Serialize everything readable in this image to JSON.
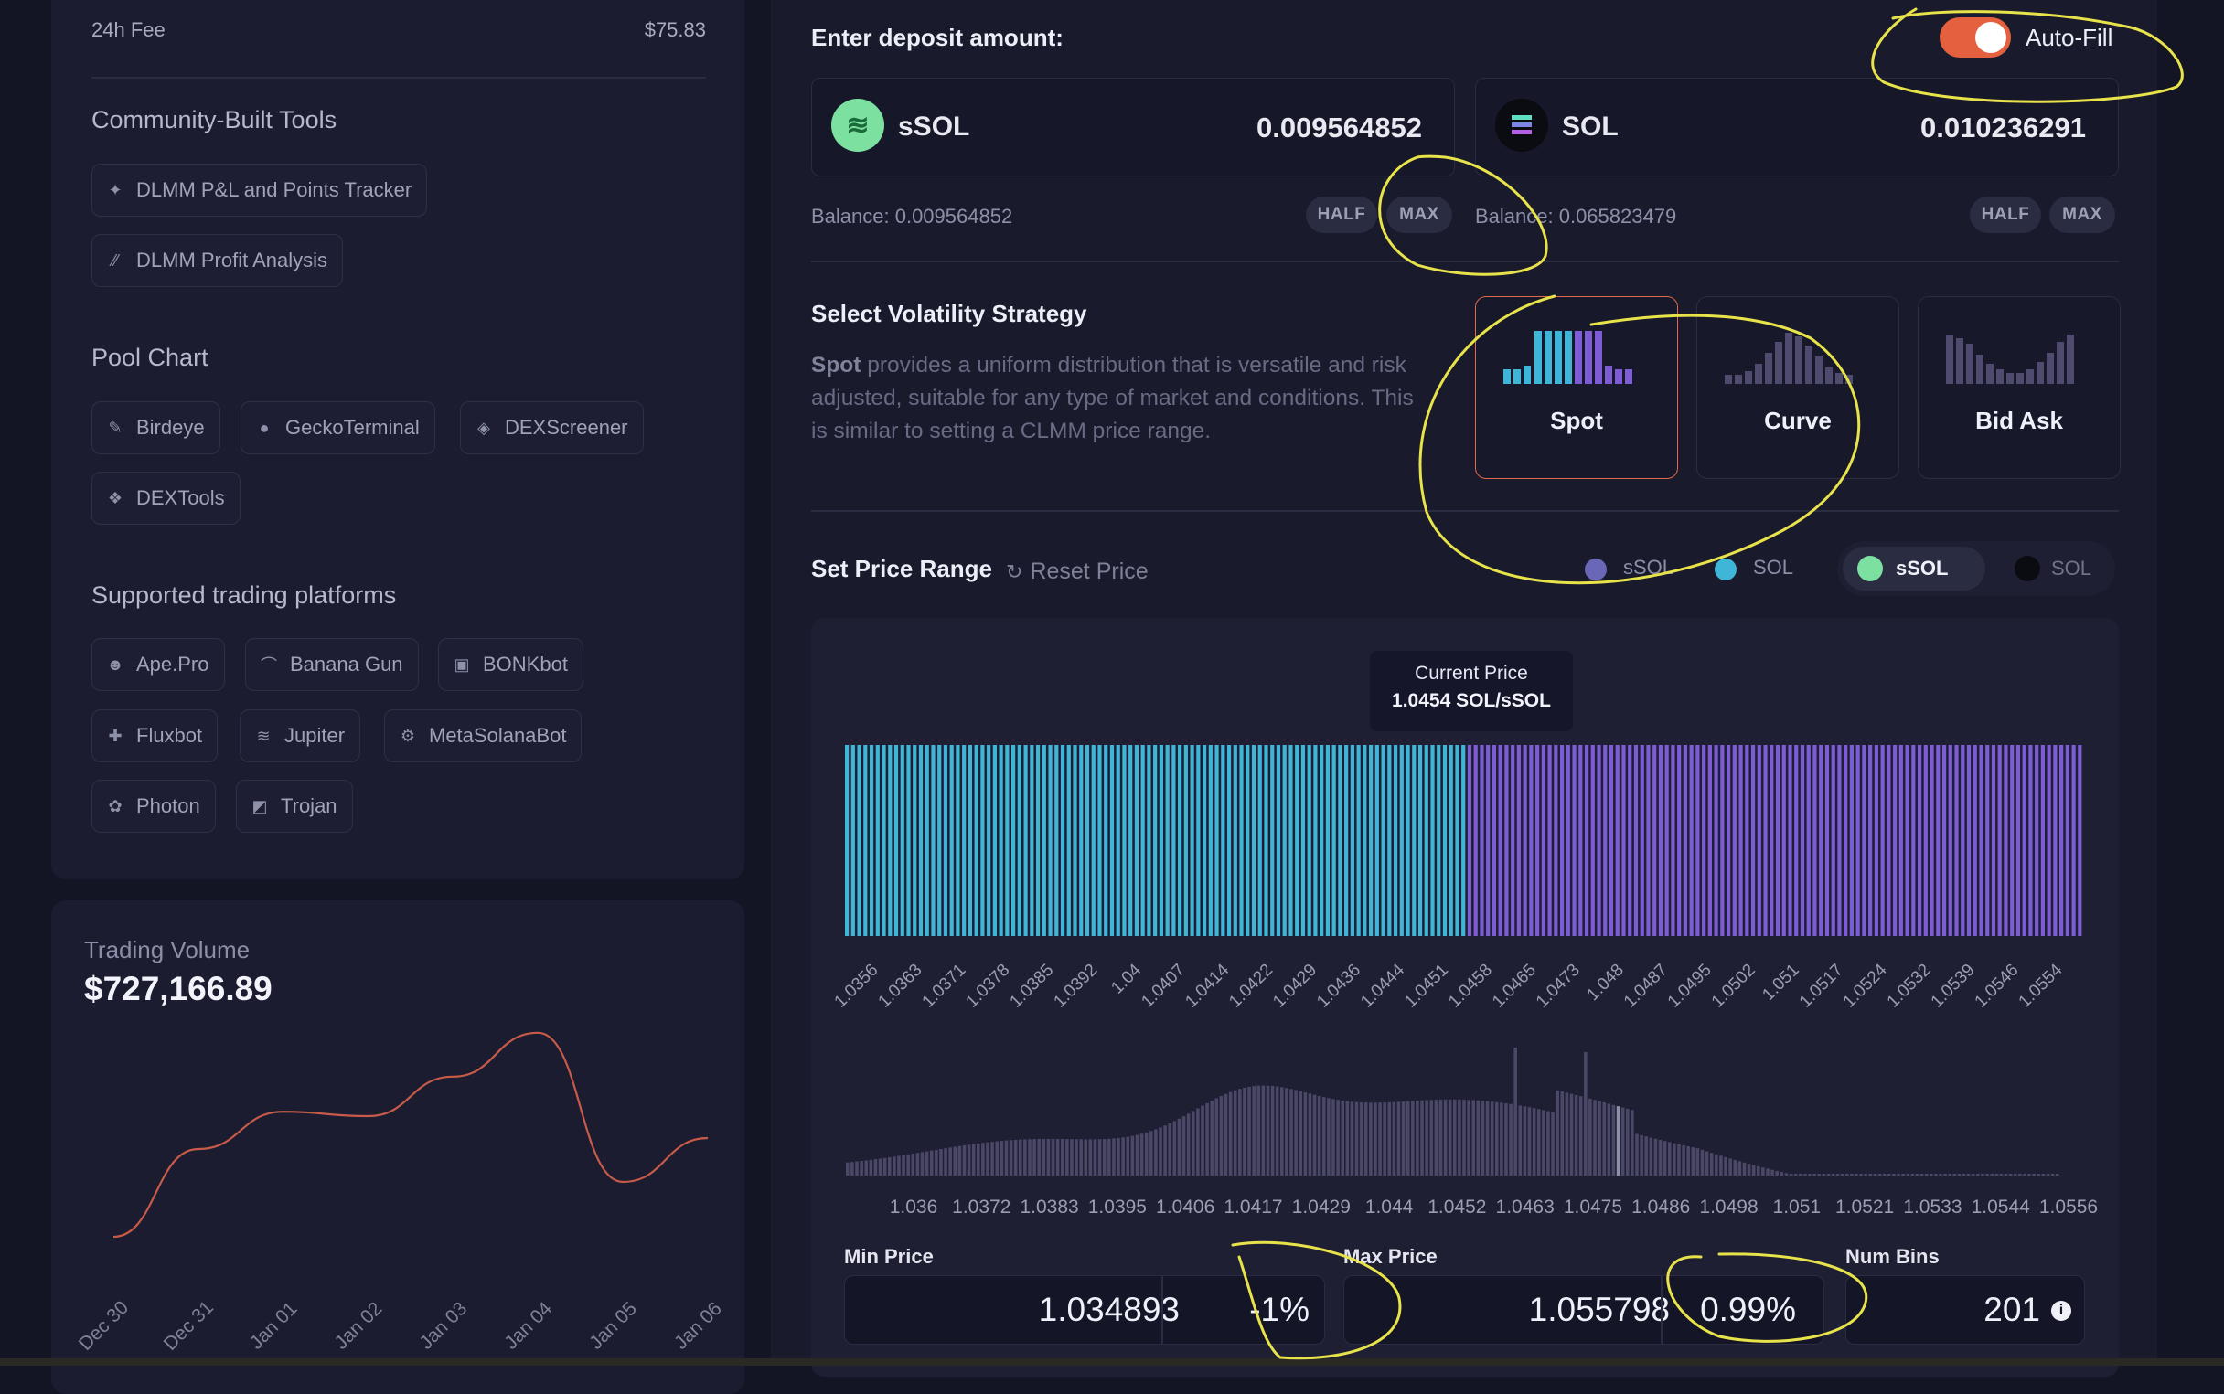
{
  "left": {
    "fee_label": "24h Fee",
    "fee_value": "$75.83",
    "community_title": "Community-Built Tools",
    "community_tools": [
      "DLMM P&L and Points Tracker",
      "DLMM Profit Analysis"
    ],
    "pool_chart_title": "Pool Chart",
    "pool_chart_tools": [
      "Birdeye",
      "GeckoTerminal",
      "DEXScreener",
      "DEXTools"
    ],
    "platforms_title": "Supported trading platforms",
    "platforms": [
      "Ape.Pro",
      "Banana Gun",
      "BONKbot",
      "Fluxbot",
      "Jupiter",
      "MetaSolanaBot",
      "Photon",
      "Trojan"
    ]
  },
  "volume": {
    "label": "Trading Volume",
    "value": "$727,166.89"
  },
  "chart_data": {
    "type": "line",
    "title": "Trading Volume",
    "x": [
      "Dec 30",
      "Dec 31",
      "Jan 01",
      "Jan 02",
      "Jan 03",
      "Jan 04",
      "Jan 05",
      "Jan 06"
    ],
    "color": "#c85a4a",
    "relative_values": [
      0.05,
      0.45,
      0.62,
      0.6,
      0.78,
      0.98,
      0.3,
      0.5
    ]
  },
  "deposit": {
    "title": "Enter deposit amount:",
    "autofill_label": "Auto-Fill",
    "token_a": {
      "symbol": "sSOL",
      "amount": "0.009564852",
      "balance": "Balance: 0.009564852"
    },
    "token_b": {
      "symbol": "SOL",
      "amount": "0.010236291",
      "balance": "Balance: 0.065823479"
    },
    "half_label": "HALF",
    "max_label": "MAX"
  },
  "strategy": {
    "title": "Select Volatility Strategy",
    "desc_bold": "Spot",
    "desc_rest": " provides a uniform distribution that is versatile and risk adjusted, suitable for any type of market and conditions. This is similar to setting a CLMM price range.",
    "options": [
      "Spot",
      "Curve",
      "Bid Ask"
    ],
    "selected": "Spot"
  },
  "range": {
    "title": "Set Price Range",
    "reset_label": "Reset Price",
    "legend_a": "sSOL",
    "legend_b": "SOL",
    "toggle_a": "sSOL",
    "toggle_b": "SOL",
    "current_price_label": "Current Price",
    "current_price_value": "1.0454 SOL/sSOL",
    "bin_ticks": [
      "1.0356",
      "1.0363",
      "1.0371",
      "1.0378",
      "1.0385",
      "1.0392",
      "1.04",
      "1.0407",
      "1.0414",
      "1.0422",
      "1.0429",
      "1.0436",
      "1.0444",
      "1.0451",
      "1.0458",
      "1.0465",
      "1.0473",
      "1.048",
      "1.0487",
      "1.0495",
      "1.0502",
      "1.051",
      "1.0517",
      "1.0524",
      "1.0532",
      "1.0539",
      "1.0546",
      "1.0554"
    ],
    "liq_ticks": [
      "1.036",
      "1.0372",
      "1.0383",
      "1.0395",
      "1.0406",
      "1.0417",
      "1.0429",
      "1.044",
      "1.0452",
      "1.0463",
      "1.0475",
      "1.0486",
      "1.0498",
      "1.051",
      "1.0521",
      "1.0533",
      "1.0544",
      "1.0556"
    ],
    "min_label": "Min Price",
    "min_value": "1.034893",
    "min_pct": "-1%",
    "max_label": "Max Price",
    "max_value": "1.055798",
    "max_pct": "0.99%",
    "bins_label": "Num Bins",
    "bins_value": "201",
    "colors": {
      "ssol": "#3fb6d8",
      "sol": "#7d5cd6",
      "accent": "#e4603f",
      "annotation": "#e8e34a"
    }
  }
}
